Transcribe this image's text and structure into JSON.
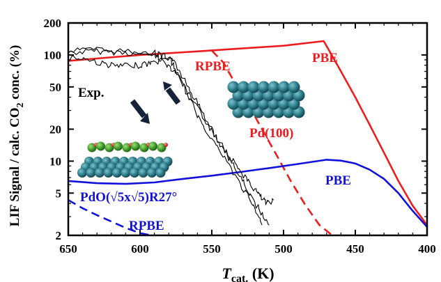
{
  "chart_data": {
    "type": "line",
    "xlabel_main": "T",
    "xlabel_sub": "cat.",
    "xlabel_unit": " (K)",
    "ylabel": "LIF Signal / calc. CO2 conc. (%)",
    "ylabel_parts": [
      "LIF Signal / calc. CO",
      "2",
      " conc. (%)"
    ],
    "xlim": [
      650,
      400
    ],
    "ylim": [
      2,
      200
    ],
    "yscale": "log",
    "xticks": [
      650,
      600,
      550,
      500,
      450,
      400
    ],
    "yticks": [
      2,
      5,
      10,
      20,
      50,
      100,
      200
    ],
    "grid": false,
    "colors": {
      "pd100": "#ee1c1c",
      "pdo": "#1111dd",
      "exp": "#000000",
      "arrow": "#15233a"
    },
    "series": [
      {
        "name": "PBE",
        "style": "solid",
        "color": "#ee1c1c",
        "x": [
          650,
          600,
          560,
          530,
          500,
          472,
          460,
          450,
          440,
          430,
          420,
          410,
          400
        ],
        "y": [
          88,
          100,
          108,
          115,
          122,
          135,
          70,
          40,
          22,
          12,
          6.5,
          3.8,
          2.5
        ]
      },
      {
        "name": "RPBE",
        "style": "dashed",
        "color": "#ee1c1c",
        "x": [
          550,
          542,
          535,
          525,
          515,
          505,
          495,
          485,
          475,
          466
        ],
        "y": [
          110,
          85,
          58,
          35,
          20,
          11.5,
          6.5,
          3.9,
          2.5,
          2
        ]
      },
      {
        "name": "PBE",
        "style": "solid",
        "color": "#1111dd",
        "x": [
          650,
          630,
          610,
          590,
          570,
          550,
          530,
          510,
          490,
          470,
          460,
          450,
          440,
          430,
          420,
          410,
          400
        ],
        "y": [
          6.5,
          6.2,
          6.1,
          6.3,
          6.8,
          7.3,
          7.9,
          8.6,
          9.4,
          10.3,
          10.1,
          9.5,
          8.3,
          6.8,
          5.0,
          3.4,
          2.4
        ]
      },
      {
        "name": "RPBE",
        "style": "dashed",
        "color": "#1111dd",
        "x": [
          650,
          640,
          630,
          620,
          610,
          600,
          592
        ],
        "y": [
          4.3,
          3.6,
          3.1,
          2.7,
          2.35,
          2.1,
          2
        ]
      },
      {
        "name": "Exp.",
        "style": "noisy",
        "color": "#000000",
        "x": [
          650,
          630,
          610,
          590,
          585,
          575,
          565,
          555,
          545,
          535,
          525,
          518,
          512,
          507
        ],
        "y": [
          105,
          108,
          105,
          100,
          90,
          70,
          40,
          25,
          15,
          10,
          6.5,
          5,
          4,
          4.3
        ]
      },
      {
        "name": "Exp.",
        "style": "noisy",
        "color": "#000000",
        "x": [
          650,
          638,
          625,
          615,
          600,
          590,
          578,
          570,
          560,
          550,
          540,
          530,
          520,
          510
        ],
        "y": [
          95,
          92,
          82,
          78,
          80,
          85,
          95,
          60,
          35,
          20,
          12,
          7,
          4,
          2.5
        ]
      },
      {
        "name": "Exp.",
        "style": "noisy",
        "color": "#000000",
        "x": [
          650,
          630,
          610,
          590,
          580,
          572,
          562,
          552,
          540,
          530,
          522,
          515
        ],
        "y": [
          110,
          112,
          108,
          104,
          95,
          60,
          30,
          18,
          10,
          6,
          4,
          2.5
        ]
      }
    ],
    "annotations": {
      "pbe_red": "PBE",
      "rpbe_red": "RPBE",
      "pd100": "Pd(100)",
      "exp": "Exp.",
      "pbe_blue": "PBE",
      "rpbe_blue": "RPBE",
      "pdo": "PdO(√5x√5)R27°"
    }
  }
}
